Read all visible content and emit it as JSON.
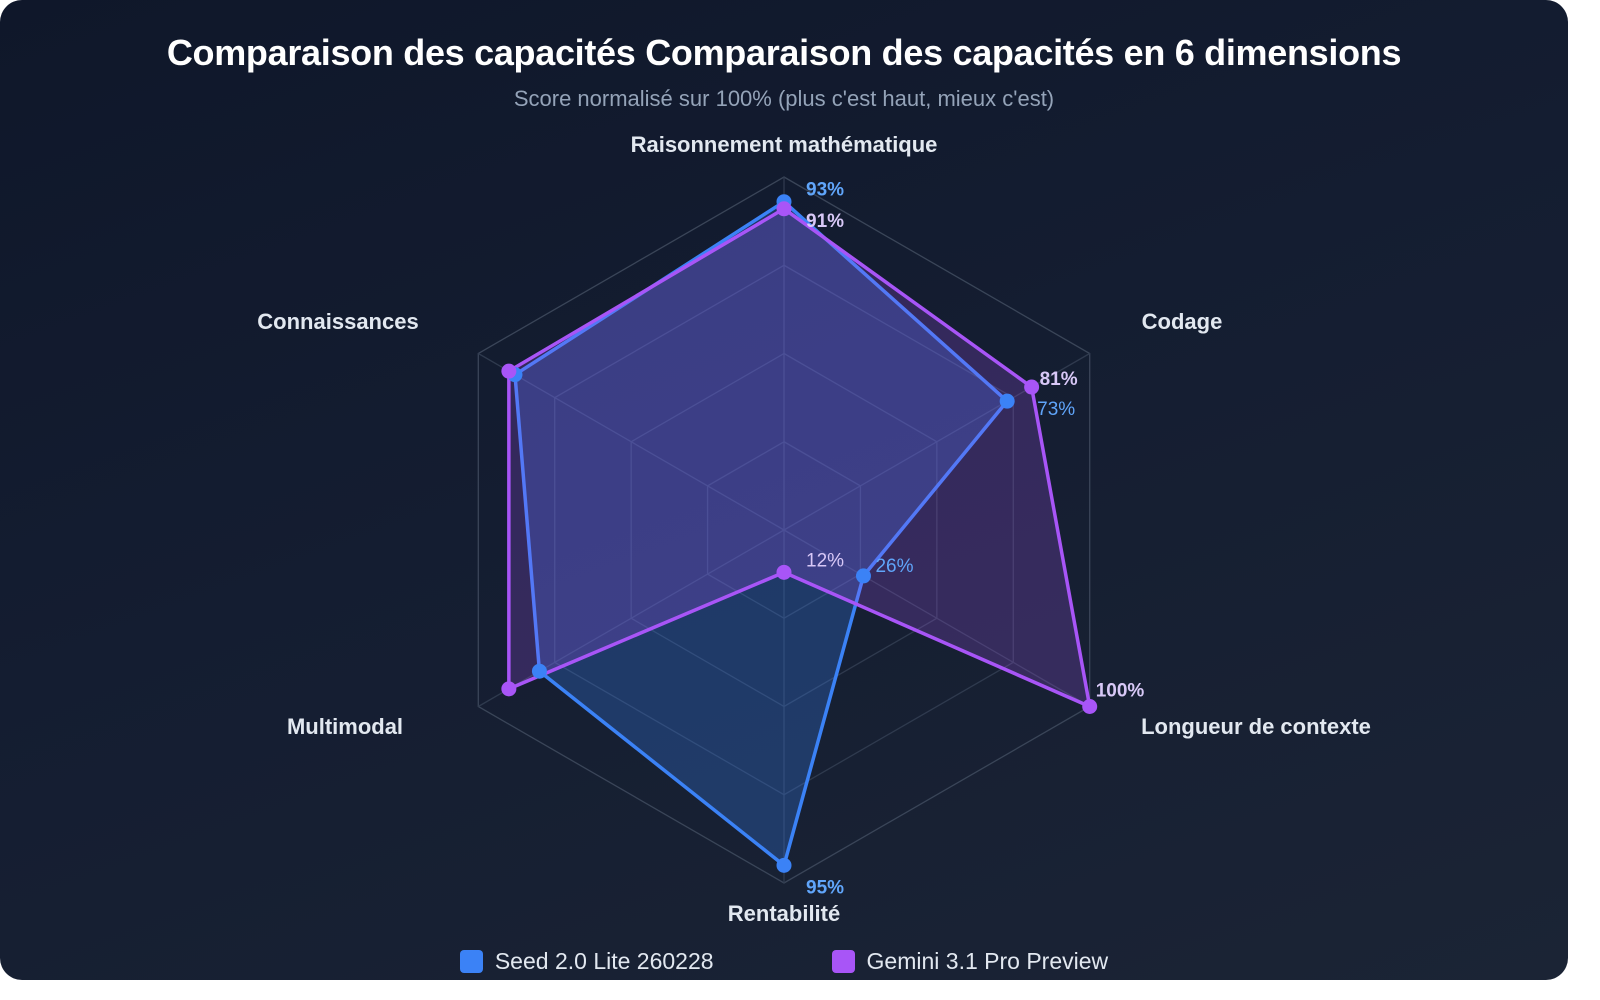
{
  "chart_data": {
    "type": "radar",
    "title": "Comparaison des capacités Comparaison des capacités en 6 dimensions",
    "subtitle": "Score normalisé sur 100% (plus c'est haut, mieux c'est)",
    "axes": [
      "Raisonnement mathématique",
      "Codage",
      "Longueur de contexte",
      "Rentabilité",
      "Multimodal",
      "Connaissances"
    ],
    "range": [
      0,
      100
    ],
    "grid_levels": 4,
    "series": [
      {
        "name": "Seed 2.0 Lite 260228",
        "color": "#3b82f6",
        "label_color": "#60a5fa",
        "values": [
          93,
          73,
          26,
          95,
          80,
          88
        ],
        "labeled": [
          true,
          true,
          true,
          true,
          false,
          false
        ]
      },
      {
        "name": "Gemini 3.1 Pro Preview",
        "color": "#a855f7",
        "label_color": "#d8c8f7",
        "values": [
          91,
          81,
          100,
          12,
          90,
          90
        ],
        "labeled": [
          true,
          true,
          true,
          true,
          false,
          false
        ]
      }
    ],
    "value_suffix": "%",
    "legend_position": "bottom"
  }
}
